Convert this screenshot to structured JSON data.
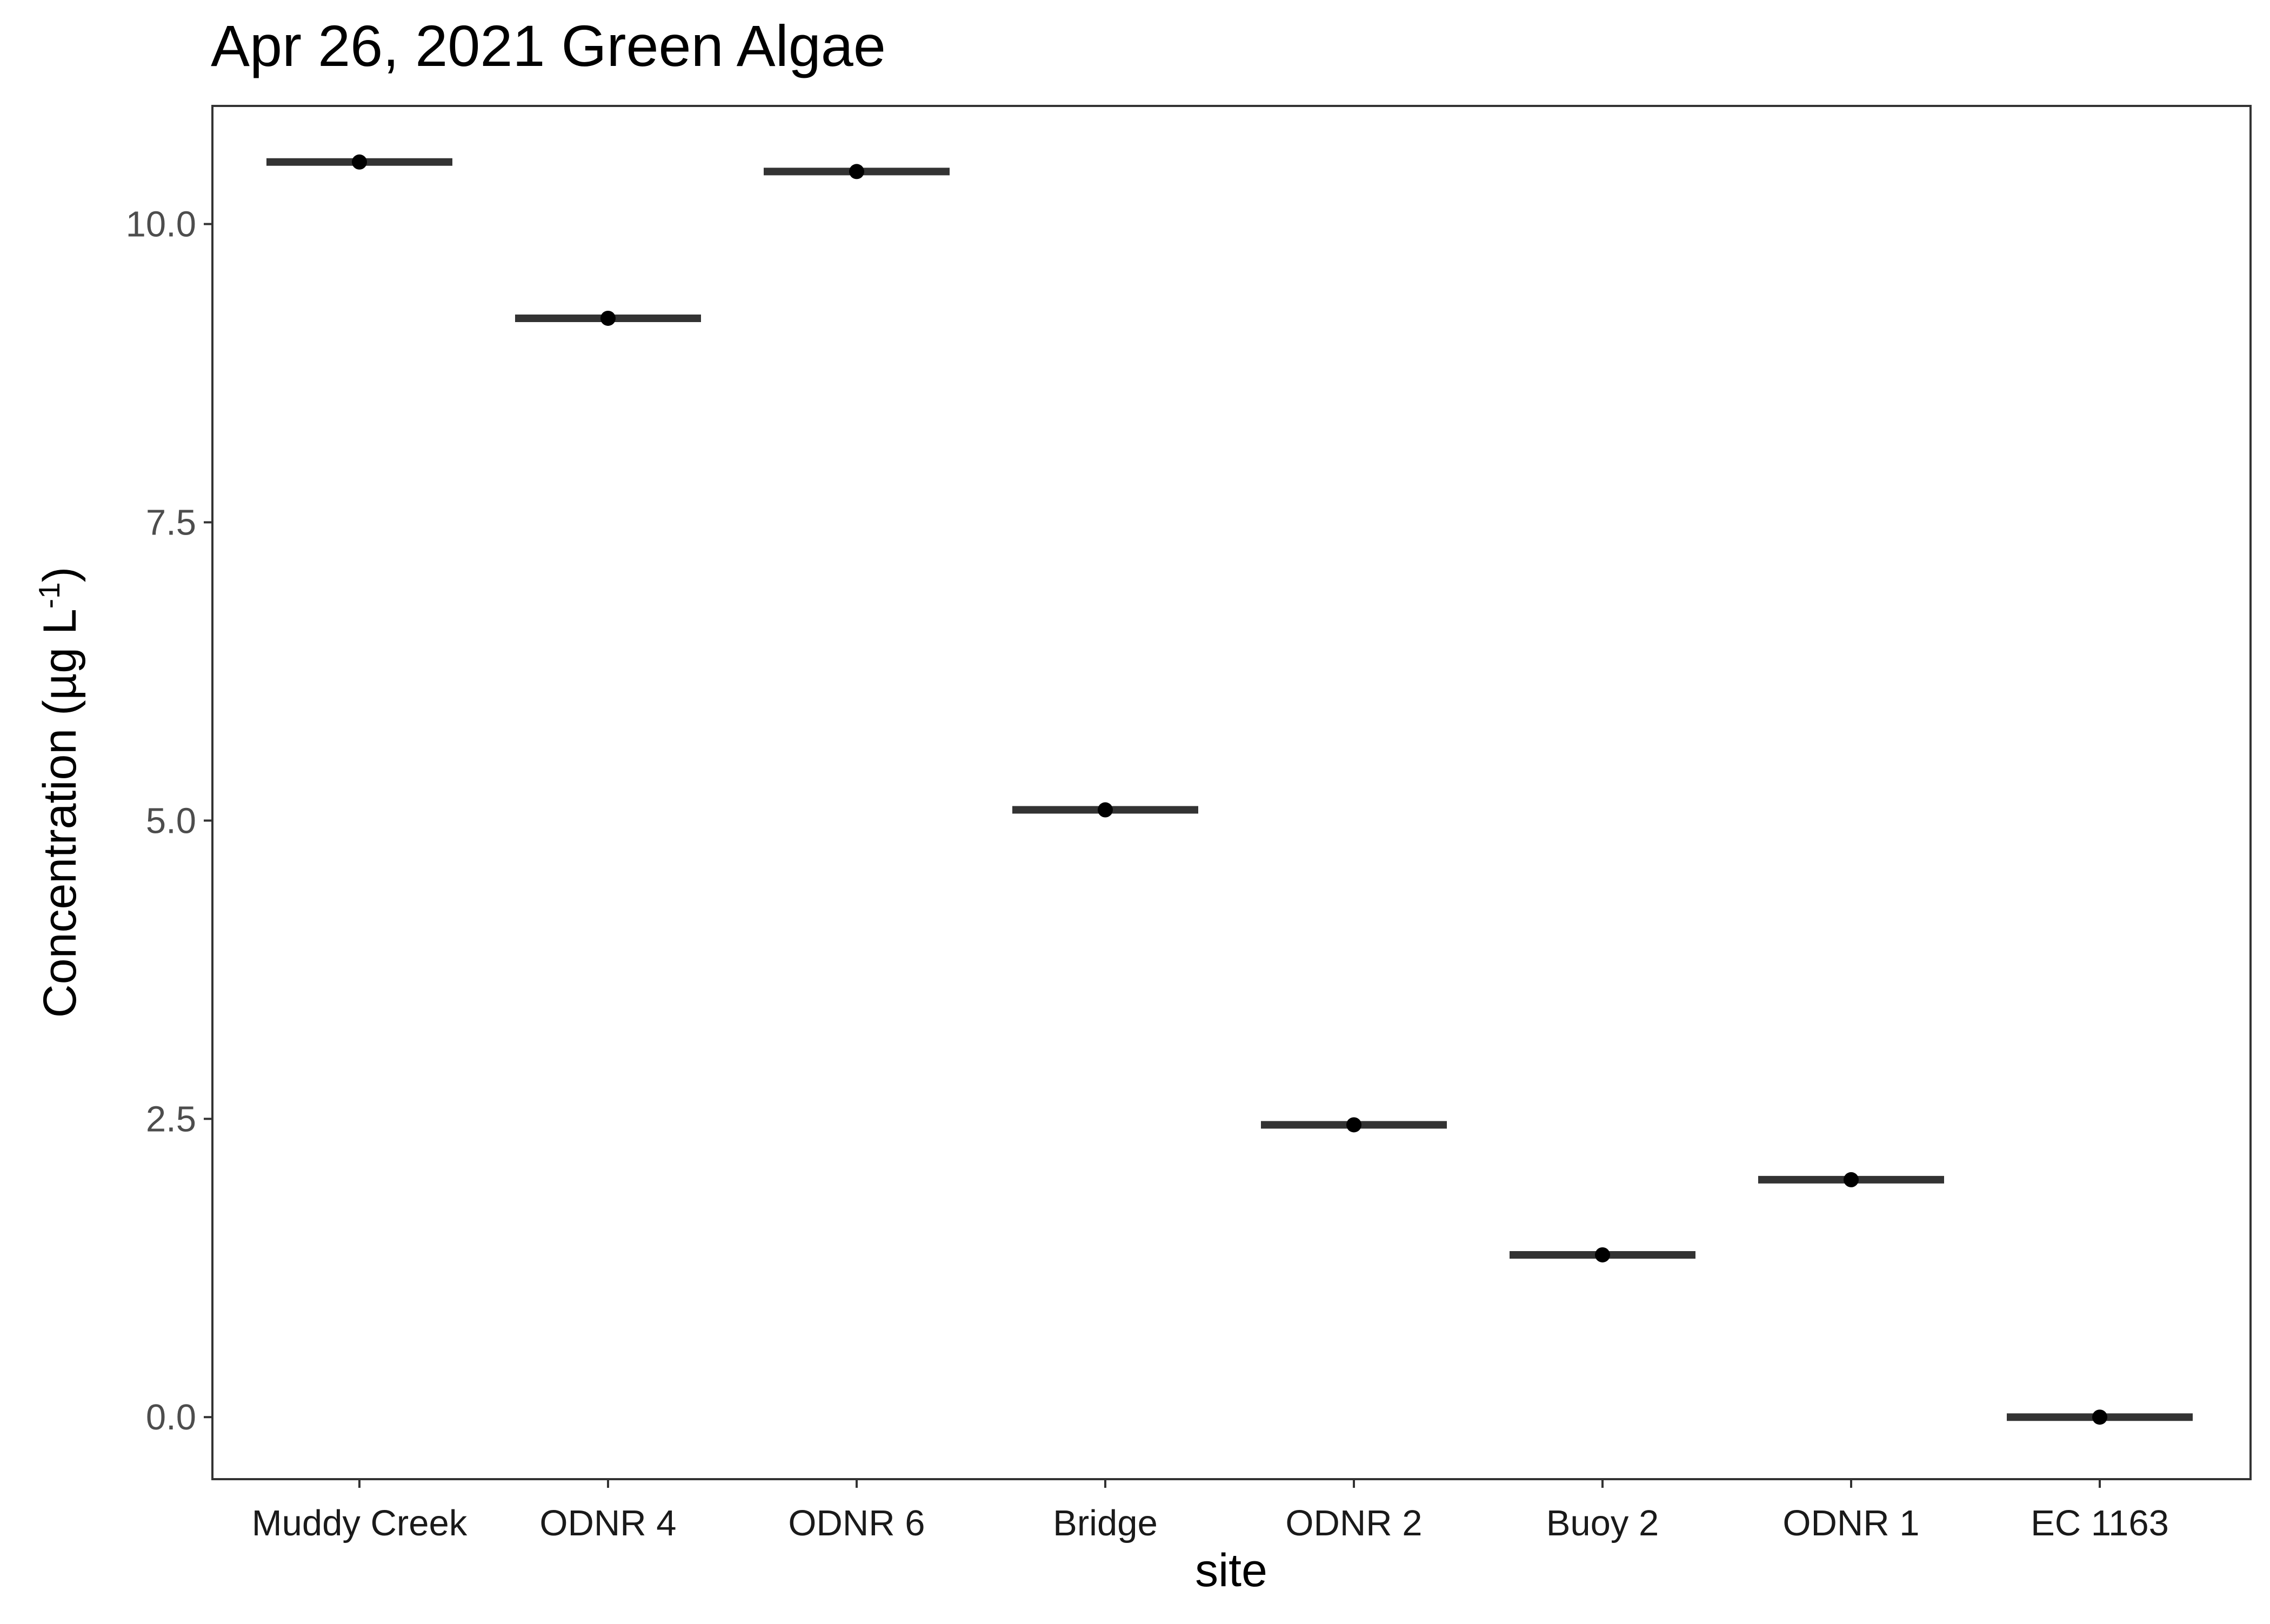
{
  "chart_data": {
    "type": "scatter",
    "title": "Apr 26, 2021 Green Algae",
    "xlabel": "site",
    "ylabel": "Concentration (µg L",
    "ylabel_superscript": "-1",
    "ylabel_suffix": ")",
    "categories": [
      "Muddy Creek",
      "ODNR 4",
      "ODNR 6",
      "Bridge",
      "ODNR 2",
      "Buoy 2",
      "ODNR 1",
      "EC 1163"
    ],
    "values": [
      10.52,
      9.21,
      10.44,
      5.09,
      2.45,
      1.36,
      1.99,
      0.0
    ],
    "yticks": [
      "0.0",
      "2.5",
      "5.0",
      "7.5",
      "10.0"
    ],
    "ylim": [
      -0.52,
      10.99
    ],
    "grid": false,
    "legend": "none",
    "colors": {
      "point": "#000000",
      "median_bar": "#333333",
      "panel_border": "#333333",
      "tick_text": "#4d4d4d"
    }
  }
}
